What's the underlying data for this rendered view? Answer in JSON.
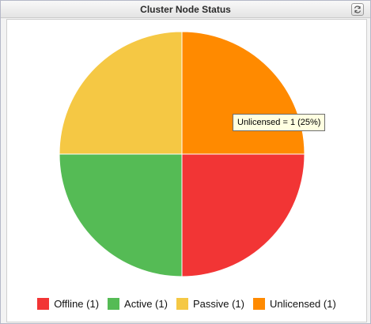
{
  "panel": {
    "title": "Cluster Node Status",
    "refresh_icon": "refresh-icon"
  },
  "tooltip": {
    "text": "Unlicensed = 1 (25%)"
  },
  "legend": [
    {
      "label": "Offline (1)",
      "color": "#f23535"
    },
    {
      "label": "Active (1)",
      "color": "#55bb55"
    },
    {
      "label": "Passive (1)",
      "color": "#f5c844"
    },
    {
      "label": "Unlicensed (1)",
      "color": "#ff8a00"
    }
  ],
  "chart_data": {
    "type": "pie",
    "title": "Cluster Node Status",
    "slices": [
      {
        "label": "Unlicensed",
        "value": 1,
        "percent": 25,
        "color": "#ff8a00"
      },
      {
        "label": "Offline",
        "value": 1,
        "percent": 25,
        "color": "#f23535"
      },
      {
        "label": "Active",
        "value": 1,
        "percent": 25,
        "color": "#55bb55"
      },
      {
        "label": "Passive",
        "value": 1,
        "percent": 25,
        "color": "#f5c844"
      }
    ],
    "legend_position": "bottom"
  }
}
